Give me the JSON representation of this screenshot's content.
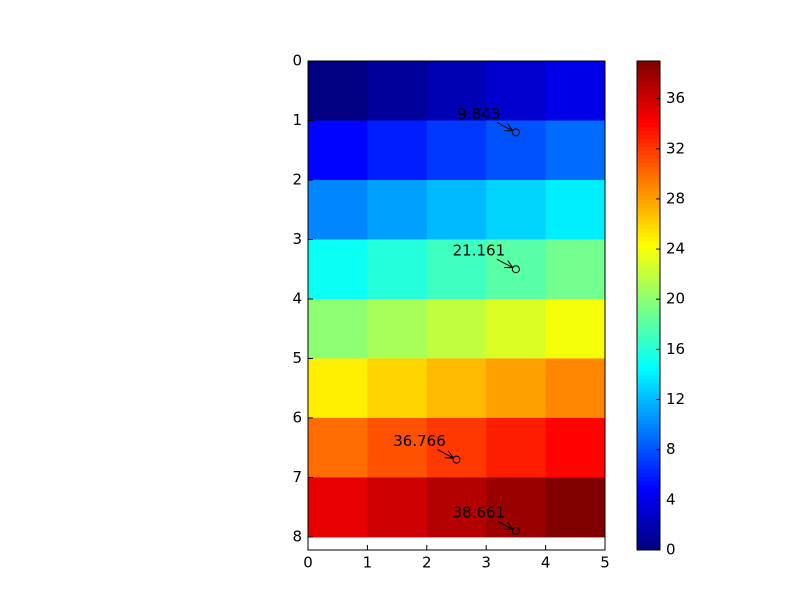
{
  "chart_data": {
    "type": "heatmap",
    "values": [
      [
        0,
        1,
        2,
        3,
        4
      ],
      [
        5,
        6,
        7,
        8,
        9
      ],
      [
        10,
        11,
        12,
        13,
        14
      ],
      [
        15,
        16,
        17,
        18,
        19
      ],
      [
        20,
        21,
        22,
        23,
        24
      ],
      [
        25,
        26,
        27,
        28,
        29
      ],
      [
        30,
        31,
        32,
        33,
        34
      ],
      [
        35,
        36,
        37,
        38,
        39
      ]
    ],
    "xlim": [
      0,
      5
    ],
    "ylim": [
      8.22,
      0
    ],
    "xticks": [
      0,
      1,
      2,
      3,
      4,
      5
    ],
    "yticks": [
      0,
      1,
      2,
      3,
      4,
      5,
      6,
      7,
      8
    ],
    "colormap": "jet",
    "clim": [
      0,
      39
    ],
    "cticks": [
      0,
      4,
      8,
      12,
      16,
      20,
      24,
      28,
      32,
      36
    ],
    "annotations": [
      {
        "label": "9.843",
        "x": 3.5,
        "y": 1.2
      },
      {
        "label": "21.161",
        "x": 3.5,
        "y": 3.5
      },
      {
        "label": "36.766",
        "x": 2.5,
        "y": 6.7
      },
      {
        "label": "38.661",
        "x": 3.5,
        "y": 7.9
      }
    ]
  }
}
